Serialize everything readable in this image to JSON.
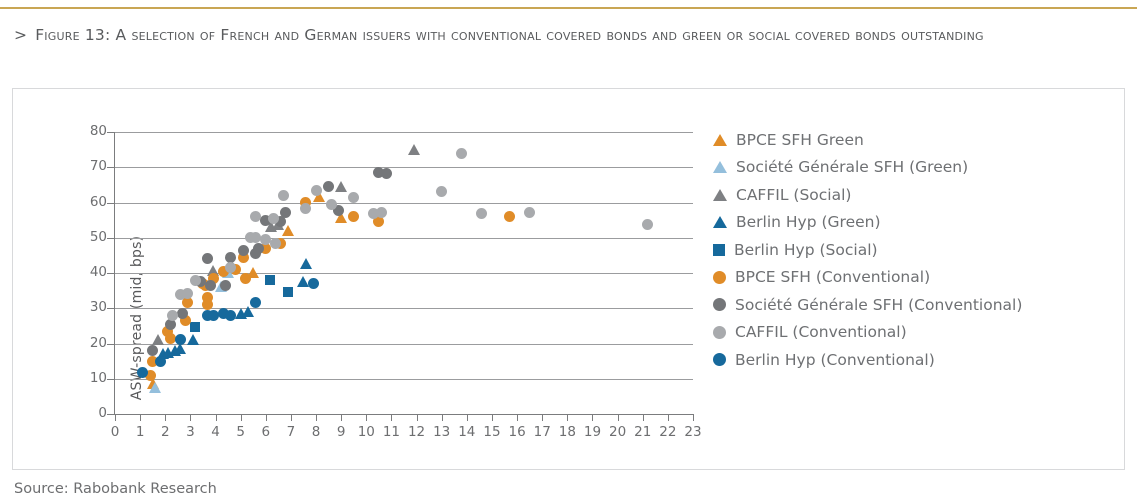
{
  "header": {
    "marker": ">",
    "title": "Figure 13: A selection of French and German issuers with conventional covered bonds and green or social covered bonds outstanding"
  },
  "footer": {
    "source": "Source: Rabobank Research"
  },
  "colors": {
    "accent_gold": "#c9a654",
    "title_text": "#595b5d",
    "axis_text": "#6d6e70",
    "gridline": "#9b9c9e",
    "axis_line": "#7b7c7e",
    "panel_border": "#d8d9db",
    "orange": "#e08c28",
    "light_blue": "#94bfdc",
    "dark_gray": "#747679",
    "mid_gray": "#7e8083",
    "light_gray": "#a8aaad",
    "teal": "#16699c"
  },
  "chart_data": {
    "type": "scatter",
    "title": "",
    "xlabel": "",
    "ylabel": "ASW-spread (mid, bps)",
    "xlim": [
      0,
      23
    ],
    "ylim": [
      0,
      80
    ],
    "xticks": [
      0,
      1,
      2,
      3,
      4,
      5,
      6,
      7,
      8,
      9,
      10,
      11,
      12,
      13,
      14,
      15,
      16,
      17,
      18,
      19,
      20,
      21,
      22,
      23
    ],
    "yticks": [
      0,
      10,
      20,
      30,
      40,
      50,
      60,
      70,
      80
    ],
    "grid": "horizontal",
    "legend_position": "right",
    "series": [
      {
        "name": "BPCE SFH Green",
        "marker": "triangle",
        "color": "#e08c28",
        "points": [
          [
            1.5,
            8.5
          ],
          [
            5.5,
            40
          ],
          [
            6.9,
            52
          ],
          [
            8.1,
            61.5
          ],
          [
            9.0,
            55.5
          ]
        ]
      },
      {
        "name": "Société Générale SFH (Green)",
        "marker": "triangle",
        "color": "#94bfdc",
        "points": [
          [
            1.6,
            7.5
          ],
          [
            4.2,
            36
          ],
          [
            4.5,
            40
          ]
        ]
      },
      {
        "name": "CAFFIL (Social)",
        "marker": "triangle",
        "color": "#7e8083",
        "points": [
          [
            1.7,
            21
          ],
          [
            3.9,
            40.5
          ],
          [
            6.2,
            53
          ],
          [
            6.5,
            53.5
          ],
          [
            9.0,
            64.5
          ],
          [
            11.9,
            75
          ]
        ]
      },
      {
        "name": "Berlin Hyp (Green)",
        "marker": "triangle",
        "color": "#16699c",
        "points": [
          [
            1.9,
            17
          ],
          [
            2.1,
            17.2
          ],
          [
            2.4,
            17.8
          ],
          [
            2.6,
            18.5
          ],
          [
            3.1,
            21
          ],
          [
            5.0,
            28.5
          ],
          [
            5.3,
            29
          ],
          [
            7.5,
            37.5
          ],
          [
            7.6,
            42.5
          ]
        ]
      },
      {
        "name": "Berlin Hyp (Social)",
        "marker": "square",
        "color": "#16699c",
        "points": [
          [
            3.2,
            24.5
          ],
          [
            6.2,
            38
          ],
          [
            6.9,
            34.5
          ]
        ]
      },
      {
        "name": "BPCE SFH (Conventional)",
        "marker": "circle",
        "color": "#e08c28",
        "points": [
          [
            1.4,
            11
          ],
          [
            1.5,
            15
          ],
          [
            2.1,
            23.5
          ],
          [
            2.2,
            21.5
          ],
          [
            2.8,
            26.5
          ],
          [
            2.9,
            31.5
          ],
          [
            3.5,
            37
          ],
          [
            3.6,
            36.5
          ],
          [
            3.7,
            33
          ],
          [
            3.7,
            31
          ],
          [
            3.9,
            38.5
          ],
          [
            4.3,
            40.5
          ],
          [
            4.8,
            41
          ],
          [
            5.1,
            44.5
          ],
          [
            5.2,
            38.5
          ],
          [
            6.0,
            47
          ],
          [
            6.6,
            48.5
          ],
          [
            7.6,
            60
          ],
          [
            9.5,
            56
          ],
          [
            10.5,
            54.5
          ],
          [
            15.7,
            56
          ]
        ]
      },
      {
        "name": "Société Générale SFH (Conventional)",
        "marker": "circle",
        "color": "#747679",
        "points": [
          [
            1.5,
            18
          ],
          [
            2.2,
            25.5
          ],
          [
            2.7,
            28.5
          ],
          [
            3.4,
            37.5
          ],
          [
            3.7,
            44
          ],
          [
            3.8,
            36.5
          ],
          [
            4.4,
            36.5
          ],
          [
            4.6,
            44.5
          ],
          [
            5.1,
            46.5
          ],
          [
            5.6,
            45.5
          ],
          [
            5.7,
            47
          ],
          [
            6.0,
            55
          ],
          [
            6.6,
            54.5
          ],
          [
            6.8,
            57.3
          ],
          [
            8.5,
            64.5
          ],
          [
            8.9,
            57.7
          ],
          [
            10.5,
            68.5
          ],
          [
            10.8,
            68.2
          ]
        ]
      },
      {
        "name": "CAFFIL (Conventional)",
        "marker": "circle",
        "color": "#a8aaad",
        "points": [
          [
            2.3,
            28
          ],
          [
            2.6,
            34
          ],
          [
            2.9,
            34.3
          ],
          [
            3.2,
            38
          ],
          [
            4.6,
            41.5
          ],
          [
            5.4,
            50
          ],
          [
            5.6,
            50
          ],
          [
            6.0,
            49.5
          ],
          [
            6.4,
            48.5
          ],
          [
            5.6,
            56
          ],
          [
            6.3,
            55.5
          ],
          [
            6.7,
            62
          ],
          [
            7.6,
            58.3
          ],
          [
            8.0,
            63.5
          ],
          [
            8.6,
            59.5
          ],
          [
            9.5,
            61.5
          ],
          [
            10.3,
            57
          ],
          [
            10.6,
            57.2
          ],
          [
            13.0,
            63
          ],
          [
            13.8,
            74
          ],
          [
            14.6,
            57
          ],
          [
            16.5,
            57.3
          ],
          [
            21.2,
            53.8
          ]
        ]
      },
      {
        "name": "Berlin Hyp (Conventional)",
        "marker": "circle",
        "color": "#16699c",
        "points": [
          [
            1.1,
            11.7
          ],
          [
            1.8,
            15
          ],
          [
            2.6,
            21
          ],
          [
            3.7,
            28
          ],
          [
            3.9,
            28
          ],
          [
            4.3,
            28.5
          ],
          [
            4.6,
            28
          ],
          [
            5.6,
            31.5
          ],
          [
            7.9,
            37
          ]
        ]
      }
    ]
  }
}
